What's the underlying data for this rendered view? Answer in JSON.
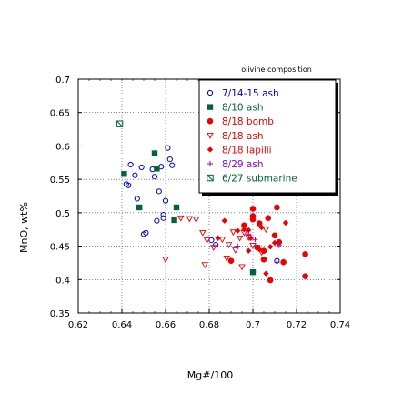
{
  "chart_data": {
    "type": "scatter",
    "title": "olivine composition",
    "xlabel": "Mg#/100",
    "ylabel": "MnO, wt%",
    "xlim": [
      0.62,
      0.74
    ],
    "ylim": [
      0.35,
      0.7
    ],
    "xticks": [
      "0.62",
      "0.64",
      "0.66",
      "0.68",
      "0.7",
      "0.72",
      "0.74"
    ],
    "yticks": [
      "0.35",
      "0.4",
      "0.45",
      "0.5",
      "0.55",
      "0.6",
      "0.65",
      "0.7"
    ],
    "grid": true,
    "legend_position": "top-right",
    "series": [
      {
        "name": "7/14-15 ash",
        "marker": "open-circle",
        "color": "#0000cc",
        "points": [
          [
            0.643,
            0.541
          ],
          [
            0.644,
            0.572
          ],
          [
            0.646,
            0.556
          ],
          [
            0.647,
            0.521
          ],
          [
            0.649,
            0.568
          ],
          [
            0.65,
            0.468
          ],
          [
            0.651,
            0.47
          ],
          [
            0.654,
            0.565
          ],
          [
            0.655,
            0.554
          ],
          [
            0.656,
            0.488
          ],
          [
            0.657,
            0.532
          ],
          [
            0.658,
            0.569
          ],
          [
            0.659,
            0.492
          ],
          [
            0.66,
            0.518
          ],
          [
            0.661,
            0.597
          ],
          [
            0.662,
            0.58
          ],
          [
            0.663,
            0.571
          ],
          [
            0.681,
            0.459
          ],
          [
            0.683,
            0.452
          ],
          [
            0.711,
            0.428
          ],
          [
            0.642,
            0.543
          ],
          [
            0.659,
            0.497
          ]
        ]
      },
      {
        "name": "8/10 ash",
        "marker": "filled-square",
        "color": "#006633",
        "points": [
          [
            0.641,
            0.558
          ],
          [
            0.648,
            0.508
          ],
          [
            0.655,
            0.589
          ],
          [
            0.656,
            0.566
          ],
          [
            0.664,
            0.489
          ],
          [
            0.665,
            0.508
          ],
          [
            0.7,
            0.411
          ]
        ]
      },
      {
        "name": "8/18 bomb",
        "marker": "filled-circle",
        "color": "#ee0000",
        "points": [
          [
            0.69,
            0.428
          ],
          [
            0.696,
            0.481
          ],
          [
            0.7,
            0.506
          ],
          [
            0.7,
            0.495
          ],
          [
            0.7,
            0.49
          ],
          [
            0.702,
            0.448
          ],
          [
            0.703,
            0.484
          ],
          [
            0.705,
            0.443
          ],
          [
            0.705,
            0.43
          ],
          [
            0.707,
            0.492
          ],
          [
            0.708,
            0.399
          ],
          [
            0.71,
            0.466
          ],
          [
            0.711,
            0.508
          ],
          [
            0.714,
            0.426
          ],
          [
            0.724,
            0.438
          ],
          [
            0.724,
            0.405
          ],
          [
            0.712,
            0.456
          ]
        ]
      },
      {
        "name": "8/18 ash",
        "marker": "open-triangle-down",
        "color": "#ee0000",
        "points": [
          [
            0.667,
            0.492
          ],
          [
            0.671,
            0.491
          ],
          [
            0.674,
            0.49
          ],
          [
            0.677,
            0.47
          ],
          [
            0.679,
            0.459
          ],
          [
            0.682,
            0.448
          ],
          [
            0.686,
            0.46
          ],
          [
            0.688,
            0.432
          ],
          [
            0.689,
            0.452
          ],
          [
            0.691,
            0.471
          ],
          [
            0.692,
            0.444
          ],
          [
            0.694,
            0.462
          ],
          [
            0.696,
            0.47
          ],
          [
            0.698,
            0.463
          ],
          [
            0.7,
            0.451
          ],
          [
            0.702,
            0.448
          ],
          [
            0.704,
            0.441
          ],
          [
            0.706,
            0.475
          ],
          [
            0.678,
            0.422
          ],
          [
            0.66,
            0.43
          ],
          [
            0.695,
            0.419
          ]
        ]
      },
      {
        "name": "8/18 lapilli",
        "marker": "filled-diamond",
        "color": "#ee0000",
        "points": [
          [
            0.684,
            0.462
          ],
          [
            0.687,
            0.488
          ],
          [
            0.693,
            0.473
          ],
          [
            0.696,
            0.475
          ],
          [
            0.698,
            0.474
          ],
          [
            0.699,
            0.462
          ],
          [
            0.703,
            0.445
          ],
          [
            0.704,
            0.478
          ],
          [
            0.706,
            0.409
          ],
          [
            0.71,
            0.455
          ],
          [
            0.715,
            0.485
          ],
          [
            0.698,
            0.443
          ],
          [
            0.708,
            0.449
          ]
        ]
      },
      {
        "name": "8/29 ash",
        "marker": "plus",
        "color": "#9900cc",
        "points": [
          [
            0.693,
            0.45
          ],
          [
            0.698,
            0.468
          ],
          [
            0.701,
            0.46
          ],
          [
            0.711,
            0.426
          ],
          [
            0.712,
            0.451
          ]
        ]
      },
      {
        "name": "6/27 submarine",
        "marker": "open-square-x",
        "color": "#006633",
        "points": [
          [
            0.639,
            0.633
          ]
        ]
      }
    ]
  }
}
